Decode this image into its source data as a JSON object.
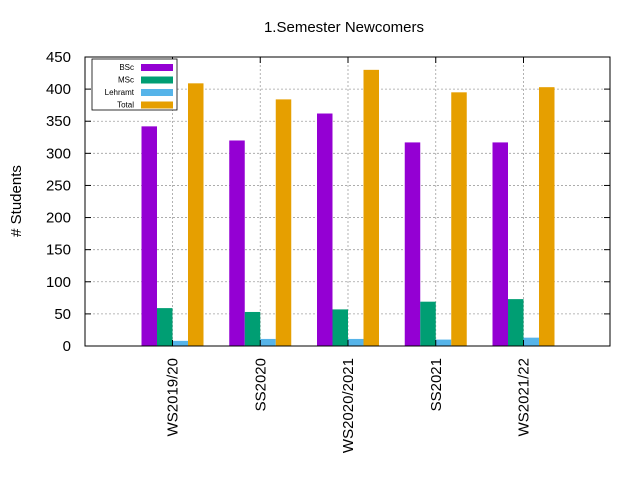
{
  "chart_data": {
    "type": "bar",
    "title": "1.Semester Newcomers",
    "xlabel": "",
    "ylabel": "# Students",
    "ylim": [
      0,
      450
    ],
    "yticks": [
      0,
      50,
      100,
      150,
      200,
      250,
      300,
      350,
      400,
      450
    ],
    "grid": true,
    "legend_position": "top-left",
    "categories": [
      "WS2019/20",
      "SS2020",
      "WS2020/2021",
      "SS2021",
      "WS2021/22"
    ],
    "series": [
      {
        "name": "BSc",
        "color": "#9400d3",
        "values": [
          342,
          320,
          362,
          317,
          317
        ]
      },
      {
        "name": "MSc",
        "color": "#009e73",
        "values": [
          59,
          53,
          57,
          69,
          73
        ]
      },
      {
        "name": "Lehramt",
        "color": "#56b4e9",
        "values": [
          8,
          11,
          11,
          10,
          13
        ]
      },
      {
        "name": "Total",
        "color": "#e69f00",
        "values": [
          409,
          384,
          430,
          395,
          403
        ]
      }
    ]
  }
}
